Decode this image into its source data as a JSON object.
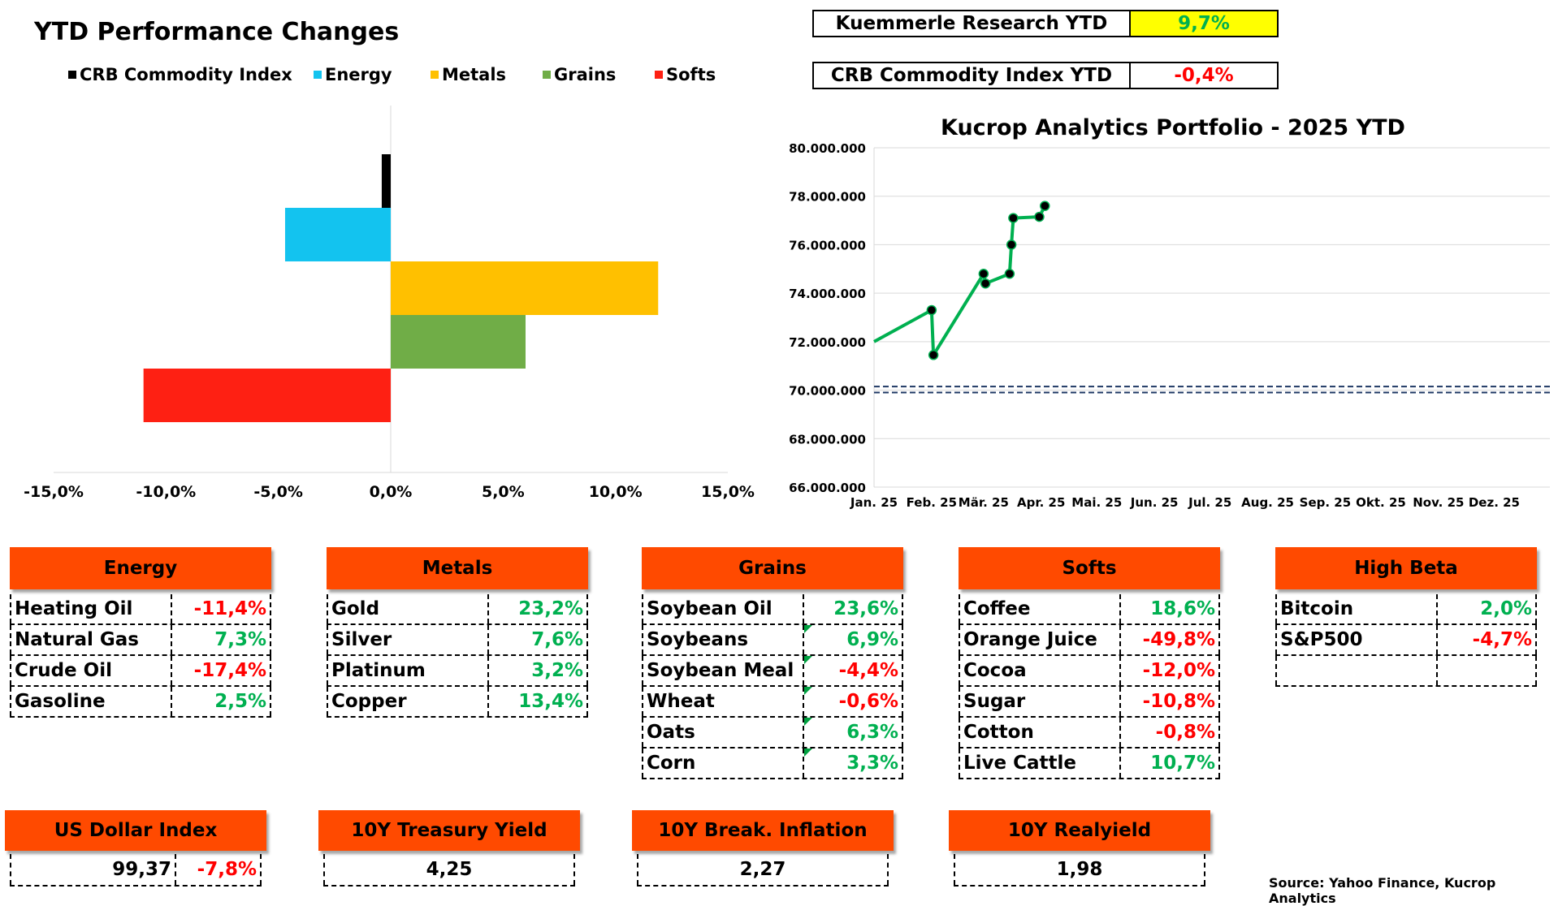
{
  "title": "YTD Performance Changes",
  "legend": [
    {
      "label": "CRB Commodity Index",
      "color": "#000000"
    },
    {
      "label": "Energy",
      "color": "#13c3ef"
    },
    {
      "label": "Metals",
      "color": "#ffc000"
    },
    {
      "label": "Grains",
      "color": "#70ad47"
    },
    {
      "label": "Softs",
      "color": "#fe2013"
    }
  ],
  "kpis": [
    {
      "label": "Kuemmerle Research YTD",
      "value": "9,7%",
      "bg": "#ffff00",
      "color": "#00b050"
    },
    {
      "label": "CRB Commodity Index YTD",
      "value": "-0,4%",
      "bg": "#ffffff",
      "color": "#ff0000"
    }
  ],
  "chart_data": [
    {
      "type": "bar",
      "orientation": "horizontal",
      "title": "YTD Performance Changes",
      "categories": [
        "CRB Commodity Index",
        "Energy",
        "Metals",
        "Grains",
        "Softs"
      ],
      "values": [
        -0.4,
        -4.7,
        11.9,
        6.0,
        -11.0
      ],
      "colors": [
        "#000000",
        "#13c3ef",
        "#ffc000",
        "#70ad47",
        "#fe2013"
      ],
      "xlim": [
        -15,
        15
      ],
      "xticks": [
        "-15,0%",
        "-10,0%",
        "-5,0%",
        "0,0%",
        "5,0%",
        "10,0%",
        "15,0%"
      ],
      "legend": "top"
    },
    {
      "type": "line",
      "title": "Kucrop Analytics Portfolio - 2025 YTD",
      "x": [
        "2025-01-01",
        "2025-02-01",
        "2025-02-02",
        "2025-03-01",
        "2025-03-02",
        "2025-03-15",
        "2025-03-16",
        "2025-03-17",
        "2025-03-31",
        "2025-04-03"
      ],
      "y": [
        72000000,
        73300000,
        71450000,
        74800000,
        74400000,
        74800000,
        76000000,
        77100000,
        77150000,
        77600000
      ],
      "markers_from_index": 1,
      "color": "#00b050",
      "reference_lines": [
        70150000,
        69900000
      ],
      "reference_color": "#1f3864",
      "ylim": [
        66000000,
        80000000
      ],
      "yticks": [
        "66.000.000",
        "68.000.000",
        "70.000.000",
        "72.000.000",
        "74.000.000",
        "76.000.000",
        "78.000.000",
        "80.000.000"
      ],
      "xticks": [
        "Jan. 25",
        "Feb. 25",
        "Mär. 25",
        "Apr. 25",
        "Mai. 25",
        "Jun. 25",
        "Jul. 25",
        "Aug. 25",
        "Sep. 25",
        "Okt. 25",
        "Nov. 25",
        "Dez. 25"
      ],
      "grid": "horizontal"
    }
  ],
  "tables": [
    {
      "header": "Energy",
      "rows": [
        {
          "name": "Heating Oil",
          "value": "-11,4%",
          "sign": "neg"
        },
        {
          "name": "Natural Gas",
          "value": "7,3%",
          "sign": "pos"
        },
        {
          "name": "Crude Oil",
          "value": "-17,4%",
          "sign": "neg"
        },
        {
          "name": "Gasoline",
          "value": "2,5%",
          "sign": "pos"
        }
      ]
    },
    {
      "header": "Metals",
      "rows": [
        {
          "name": "Gold",
          "value": "23,2%",
          "sign": "pos"
        },
        {
          "name": "Silver",
          "value": "7,6%",
          "sign": "pos"
        },
        {
          "name": "Platinum",
          "value": "3,2%",
          "sign": "pos"
        },
        {
          "name": "Copper",
          "value": "13,4%",
          "sign": "pos"
        }
      ]
    },
    {
      "header": "Grains",
      "rows": [
        {
          "name": "Soybean Oil",
          "value": "23,6%",
          "sign": "pos"
        },
        {
          "name": "Soybeans",
          "value": "6,9%",
          "sign": "pos"
        },
        {
          "name": "Soybean Meal",
          "value": "-4,4%",
          "sign": "neg"
        },
        {
          "name": "Wheat",
          "value": "-0,6%",
          "sign": "neg"
        },
        {
          "name": "Oats",
          "value": "6,3%",
          "sign": "pos"
        },
        {
          "name": "Corn",
          "value": "3,3%",
          "sign": "pos"
        }
      ]
    },
    {
      "header": "Softs",
      "rows": [
        {
          "name": "Coffee",
          "value": "18,6%",
          "sign": "pos"
        },
        {
          "name": "Orange Juice",
          "value": "-49,8%",
          "sign": "neg"
        },
        {
          "name": "Cocoa",
          "value": "-12,0%",
          "sign": "neg"
        },
        {
          "name": "Sugar",
          "value": "-10,8%",
          "sign": "neg"
        },
        {
          "name": "Cotton",
          "value": "-0,8%",
          "sign": "neg"
        },
        {
          "name": "Live Cattle",
          "value": "10,7%",
          "sign": "pos"
        }
      ]
    },
    {
      "header": "High Beta",
      "rows": [
        {
          "name": "Bitcoin",
          "value": "2,0%",
          "sign": "pos"
        },
        {
          "name": "S&P500",
          "value": "-4,7%",
          "sign": "neg"
        },
        {
          "name": "",
          "value": "",
          "sign": ""
        }
      ]
    }
  ],
  "indicators": [
    {
      "header": "US Dollar Index",
      "value": "99,37",
      "change": "-7,8%"
    },
    {
      "header": "10Y Treasury Yield",
      "value": "4,25"
    },
    {
      "header": "10Y Break. Inflation",
      "value": "2,27"
    },
    {
      "header": "10Y Realyield",
      "value": "1,98"
    }
  ],
  "source": "Source: Yahoo Finance, Kucrop Analytics"
}
